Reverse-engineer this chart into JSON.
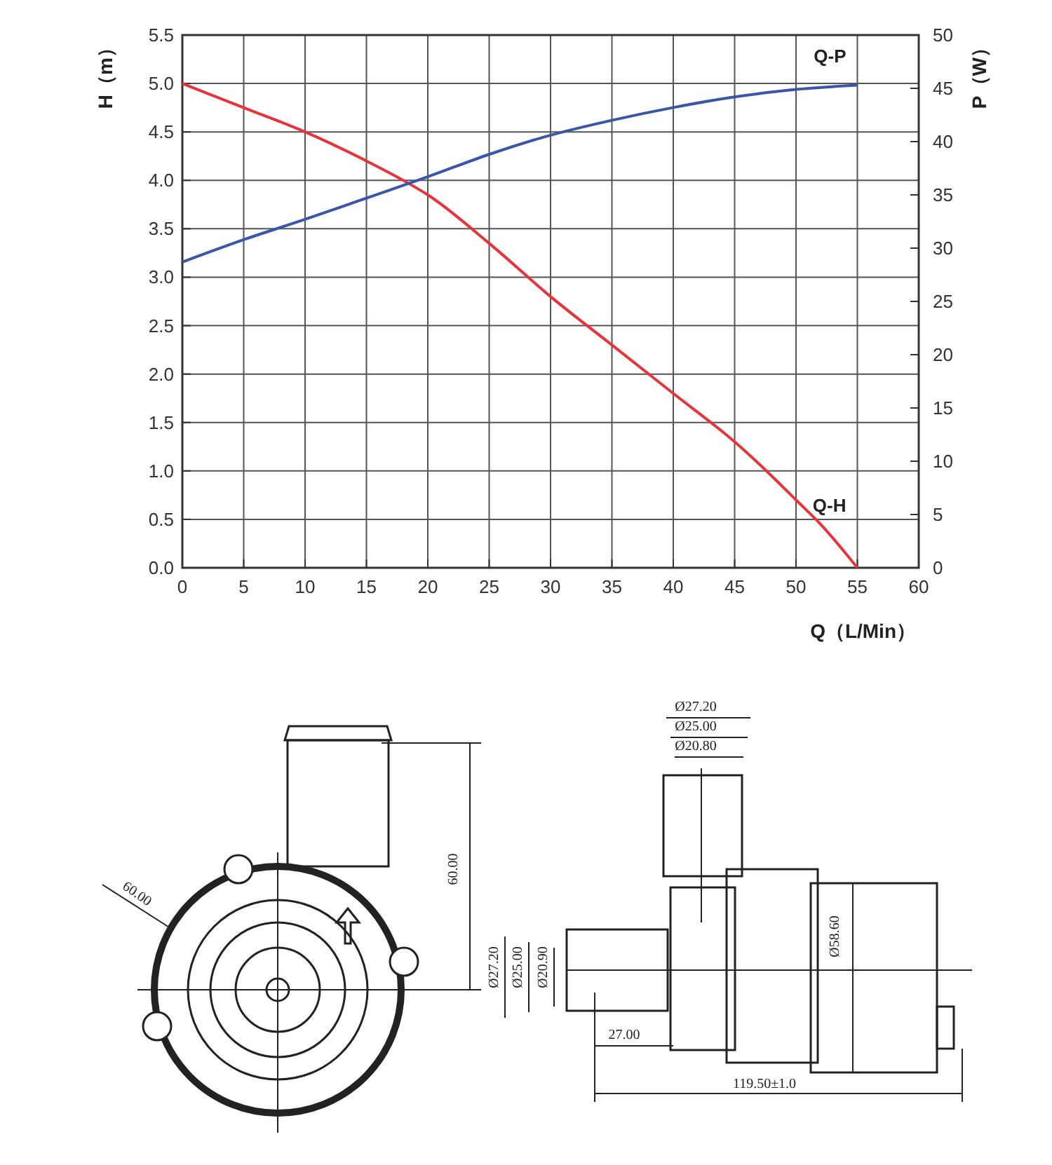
{
  "chart_data": {
    "type": "line",
    "xlabel": "Q（L/Min）",
    "ylabel": "H（m）",
    "y2label": "P（W）",
    "xlim": [
      0,
      60
    ],
    "xticks": [
      0,
      5,
      10,
      15,
      20,
      25,
      30,
      35,
      40,
      45,
      50,
      55,
      60
    ],
    "ylim": [
      0,
      5.5
    ],
    "yticks": [
      {
        "value": 0,
        "label": "0.0"
      },
      {
        "value": 0.5,
        "label": "0.5"
      },
      {
        "value": 1,
        "label": "1.0"
      },
      {
        "value": 1.5,
        "label": "1.5"
      },
      {
        "value": 2,
        "label": "2.0"
      },
      {
        "value": 2.5,
        "label": "2.5"
      },
      {
        "value": 3,
        "label": "3.0"
      },
      {
        "value": 3.5,
        "label": "3.5"
      },
      {
        "value": 4,
        "label": "4.0"
      },
      {
        "value": 4.5,
        "label": "4.5"
      },
      {
        "value": 5,
        "label": "5.0"
      },
      {
        "value": 5.5,
        "label": "5.5"
      }
    ],
    "y2lim": [
      0,
      50
    ],
    "y2ticks": [
      0,
      5,
      10,
      15,
      20,
      25,
      30,
      35,
      40,
      45,
      50
    ],
    "grid": true,
    "marker": "none",
    "line_style": "solid",
    "series": [
      {
        "name": "Q-H",
        "color": "#e8333a",
        "x": [
          0,
          5,
          10,
          15,
          18,
          20,
          25,
          30,
          35,
          40,
          45,
          48,
          50,
          52,
          55
        ],
        "values": [
          5.0,
          4.75,
          4.5,
          4.2,
          4.0,
          3.85,
          3.35,
          2.8,
          2.3,
          1.8,
          1.3,
          0.95,
          0.7,
          0.45,
          0
        ]
      },
      {
        "name": "Q-P",
        "color": "#3a56a8",
        "axis": "y2",
        "x": [
          0,
          5,
          10,
          15,
          20,
          25,
          30,
          35,
          40,
          45,
          50,
          55
        ],
        "values": [
          28.7,
          30.8,
          32.7,
          34.7,
          36.7,
          38.8,
          40.6,
          42.0,
          43.2,
          44.2,
          44.9,
          45.3
        ]
      }
    ],
    "annotations": [
      "60.00",
      "60.00",
      "Ø27.20",
      "Ø25.00",
      "Ø20.90",
      "Ø27.20",
      "Ø25.00",
      "Ø20.80",
      "Ø58.60",
      "27.00",
      "119.50±1.0"
    ]
  }
}
